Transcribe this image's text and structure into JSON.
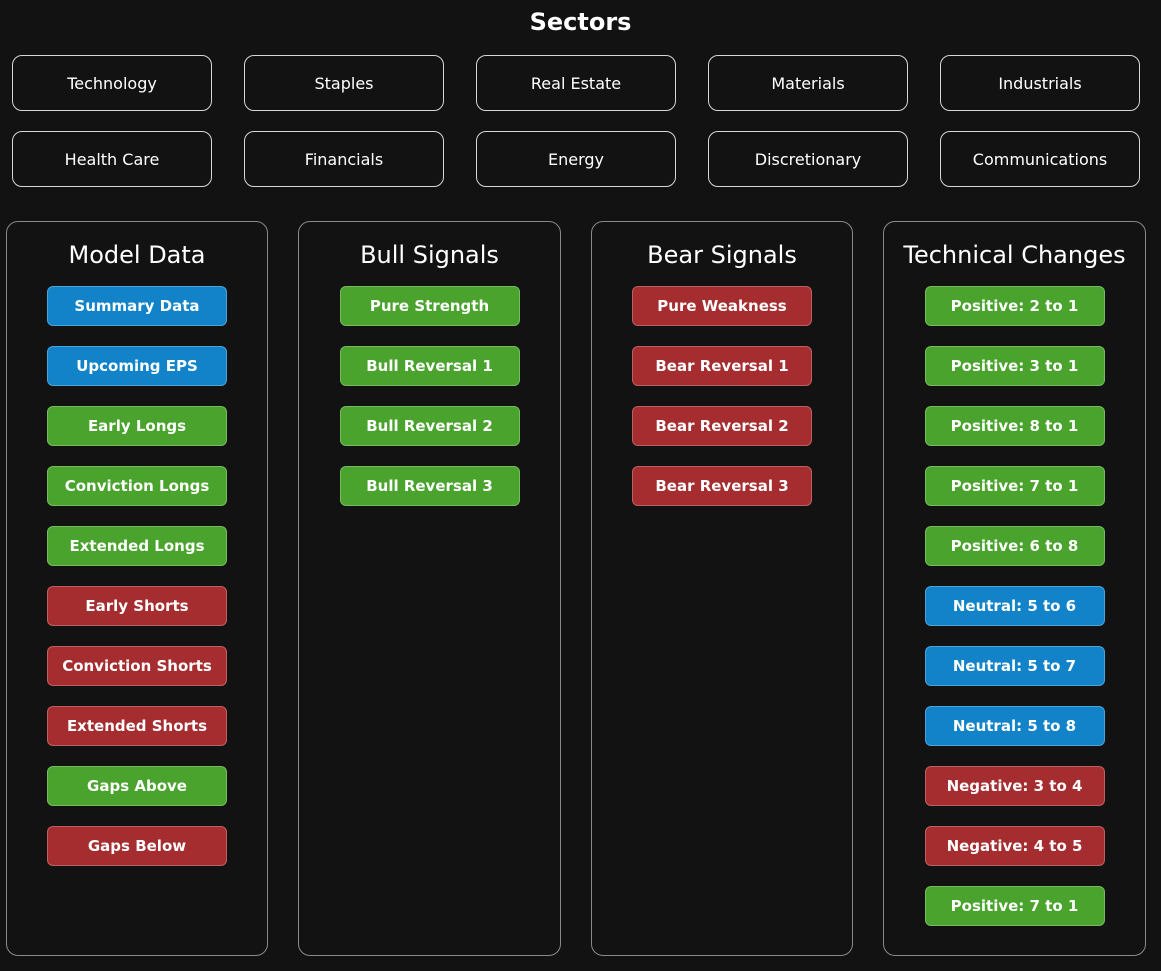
{
  "sectors": {
    "title": "Sectors",
    "items": [
      "Technology",
      "Staples",
      "Real Estate",
      "Materials",
      "Industrials",
      "Health Care",
      "Financials",
      "Energy",
      "Discretionary",
      "Communications"
    ]
  },
  "colors": {
    "blue": "#1283c8",
    "green": "#4aa32d",
    "red": "#a52d2f",
    "background": "#121212"
  },
  "panels": [
    {
      "title": "Model Data",
      "buttons": [
        {
          "label": "Summary Data",
          "color": "blue"
        },
        {
          "label": "Upcoming EPS",
          "color": "blue"
        },
        {
          "label": "Early Longs",
          "color": "green"
        },
        {
          "label": "Conviction Longs",
          "color": "green"
        },
        {
          "label": "Extended Longs",
          "color": "green"
        },
        {
          "label": "Early Shorts",
          "color": "red"
        },
        {
          "label": "Conviction Shorts",
          "color": "red"
        },
        {
          "label": "Extended Shorts",
          "color": "red"
        },
        {
          "label": "Gaps Above",
          "color": "green"
        },
        {
          "label": "Gaps Below",
          "color": "red"
        }
      ]
    },
    {
      "title": "Bull Signals",
      "buttons": [
        {
          "label": "Pure Strength",
          "color": "green"
        },
        {
          "label": "Bull Reversal 1",
          "color": "green"
        },
        {
          "label": "Bull Reversal 2",
          "color": "green"
        },
        {
          "label": "Bull Reversal 3",
          "color": "green"
        }
      ]
    },
    {
      "title": "Bear Signals",
      "buttons": [
        {
          "label": "Pure Weakness",
          "color": "red"
        },
        {
          "label": "Bear Reversal 1",
          "color": "red"
        },
        {
          "label": "Bear Reversal 2",
          "color": "red"
        },
        {
          "label": "Bear Reversal 3",
          "color": "red"
        }
      ]
    },
    {
      "title": "Technical Changes",
      "buttons": [
        {
          "label": "Positive: 2 to 1",
          "color": "green"
        },
        {
          "label": "Positive: 3 to 1",
          "color": "green"
        },
        {
          "label": "Positive: 8 to 1",
          "color": "green"
        },
        {
          "label": "Positive: 7 to 1",
          "color": "green"
        },
        {
          "label": "Positive: 6 to 8",
          "color": "green"
        },
        {
          "label": "Neutral: 5 to 6",
          "color": "blue"
        },
        {
          "label": "Neutral: 5 to 7",
          "color": "blue"
        },
        {
          "label": "Neutral: 5 to 8",
          "color": "blue"
        },
        {
          "label": "Negative: 3 to 4",
          "color": "red"
        },
        {
          "label": "Negative: 4 to 5",
          "color": "red"
        },
        {
          "label": "Positive: 7 to 1",
          "color": "green"
        }
      ]
    }
  ]
}
